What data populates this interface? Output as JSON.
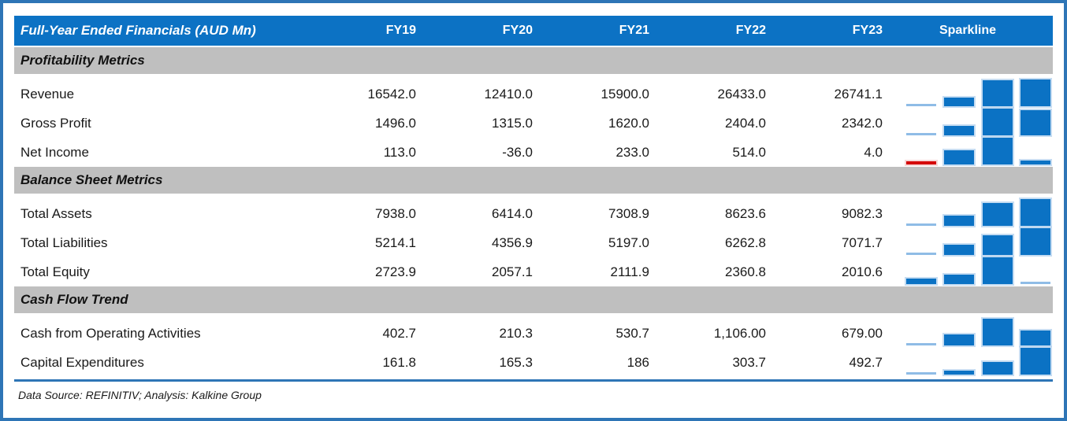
{
  "chart_data": {
    "type": "table",
    "title": "Full-Year Ended Financials (AUD Mn)",
    "fy_columns": [
      "FY19",
      "FY20",
      "FY21",
      "FY22",
      "FY23"
    ],
    "sparkline_column": "Sparkline",
    "sections": [
      {
        "label": "Profitability Metrics",
        "rows": [
          {
            "label": "Revenue",
            "values": [
              "16542.0",
              "12410.0",
              "15900.0",
              "26433.0",
              "26741.1"
            ]
          },
          {
            "label": "Gross Profit",
            "values": [
              "1496.0",
              "1315.0",
              "1620.0",
              "2404.0",
              "2342.0"
            ]
          },
          {
            "label": "Net Income",
            "values": [
              "113.0",
              "-36.0",
              "233.0",
              "514.0",
              "4.0"
            ]
          }
        ]
      },
      {
        "label": "Balance Sheet Metrics",
        "rows": [
          {
            "label": "Total Assets",
            "values": [
              "7938.0",
              "6414.0",
              "7308.9",
              "8623.6",
              "9082.3"
            ]
          },
          {
            "label": "Total Liabilities",
            "values": [
              "5214.1",
              "4356.9",
              "5197.0",
              "6262.8",
              "7071.7"
            ]
          },
          {
            "label": "Total Equity",
            "values": [
              "2723.9",
              "2057.1",
              "2111.9",
              "2360.8",
              "2010.6"
            ]
          }
        ]
      },
      {
        "label": "Cash Flow Trend",
        "rows": [
          {
            "label": "Cash from Operating Activities",
            "values": [
              "402.7",
              "210.3",
              "530.7",
              "1,106.00",
              "679.00"
            ]
          },
          {
            "label": "Capital Expenditures",
            "values": [
              "161.8",
              "165.3",
              "186",
              "303.7",
              "492.7"
            ]
          }
        ]
      }
    ],
    "sparkline_note": "Mini column charts plot FY20-FY23 values scaled min-to-max; minimum value drawn as thin light-blue sliver; negative values drawn in red"
  },
  "footer": {
    "source_note": "Data Source: REFINITIV; Analysis: Kalkine Group"
  },
  "colors": {
    "header_bg": "#0C72C4",
    "header_text": "#FFFFFF",
    "section_bg": "#BFBFBF",
    "body_text": "#1A1A1A",
    "bar_positive": "#0B72C4",
    "bar_minimum": "#8FBCE6",
    "bar_negative": "#D40000",
    "frame_border": "#2E75B6",
    "bottom_rule": "#2E75B6"
  }
}
